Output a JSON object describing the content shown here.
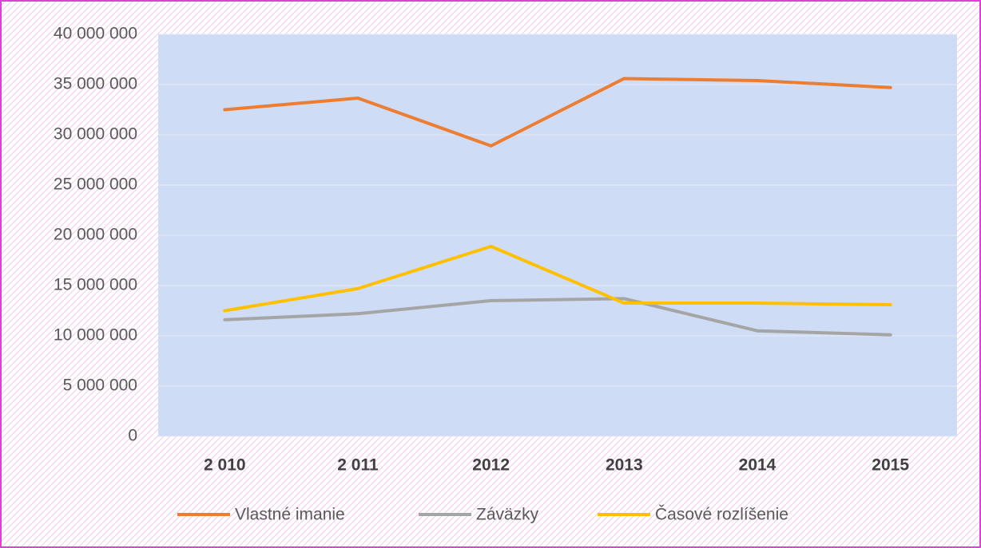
{
  "chart_data": {
    "type": "line",
    "categories": [
      "2 010",
      "2 011",
      "2012",
      "2013",
      "2014",
      "2015"
    ],
    "series": [
      {
        "name": "Vlastné imanie",
        "color": "#ed7d31",
        "values": [
          32500000,
          33650000,
          28900000,
          35600000,
          35400000,
          34700000
        ]
      },
      {
        "name": "Záväzky",
        "color": "#a5a5a5",
        "values": [
          11600000,
          12200000,
          13500000,
          13700000,
          10500000,
          10100000
        ]
      },
      {
        "name": "Časové rozlíšenie",
        "color": "#ffc000",
        "values": [
          12500000,
          14700000,
          18900000,
          13250000,
          13250000,
          13100000
        ]
      }
    ],
    "ylim": [
      0,
      40000000
    ],
    "yticks": [
      {
        "value": 0,
        "label": "0"
      },
      {
        "value": 5000000,
        "label": "5 000 000"
      },
      {
        "value": 10000000,
        "label": "10 000 000"
      },
      {
        "value": 15000000,
        "label": "15 000 000"
      },
      {
        "value": 20000000,
        "label": "20 000 000"
      },
      {
        "value": 25000000,
        "label": "25 000 000"
      },
      {
        "value": 30000000,
        "label": "30 000 000"
      },
      {
        "value": 35000000,
        "label": "35 000 000"
      },
      {
        "value": 40000000,
        "label": "40 000 000"
      }
    ],
    "grid": true,
    "legend": "bottom"
  }
}
